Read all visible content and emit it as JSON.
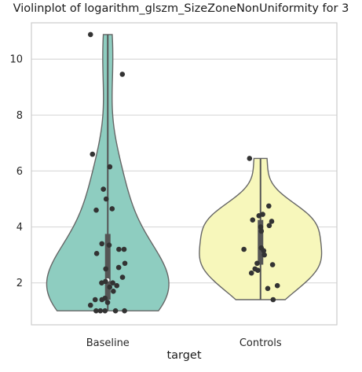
{
  "chart_data": {
    "type": "violin",
    "title": "Violinplot of logarithm_glszm_SizeZoneNonUniformity for 3",
    "xlabel": "target",
    "ylabel": "",
    "categories": [
      "Baseline",
      "Controls"
    ],
    "ylim": [
      0.5,
      11.3
    ],
    "yticks": [
      2,
      4,
      6,
      8,
      10
    ],
    "grid": "horizontal",
    "colors": {
      "Baseline": "#8ecdc0",
      "Controls": "#f7f7bb",
      "outline": "#666666",
      "points": "#333333",
      "grid": "#d9d9d9"
    },
    "groups": [
      {
        "name": "Baseline",
        "min": 1.0,
        "max": 10.88,
        "q1": 1.4,
        "median": 2.1,
        "q3": 3.75,
        "points": [
          10.88,
          9.46,
          6.6,
          6.15,
          5.35,
          5.0,
          4.65,
          4.6,
          3.4,
          3.35,
          3.2,
          3.2,
          3.05,
          2.7,
          2.55,
          2.5,
          2.2,
          2.05,
          2.0,
          2.0,
          1.9,
          1.85,
          1.7,
          1.45,
          1.4,
          1.4,
          1.3,
          1.2,
          1.0,
          1.0,
          1.0,
          1.0,
          1.0
        ]
      },
      {
        "name": "Controls",
        "min": 1.4,
        "max": 6.45,
        "q1": 2.65,
        "median": 3.25,
        "q3": 4.25,
        "points": [
          6.45,
          4.75,
          4.45,
          4.4,
          4.25,
          4.2,
          4.05,
          4.0,
          3.85,
          3.25,
          3.2,
          3.15,
          3.0,
          2.7,
          2.65,
          2.5,
          2.45,
          2.35,
          1.9,
          1.8,
          1.4
        ]
      }
    ]
  }
}
